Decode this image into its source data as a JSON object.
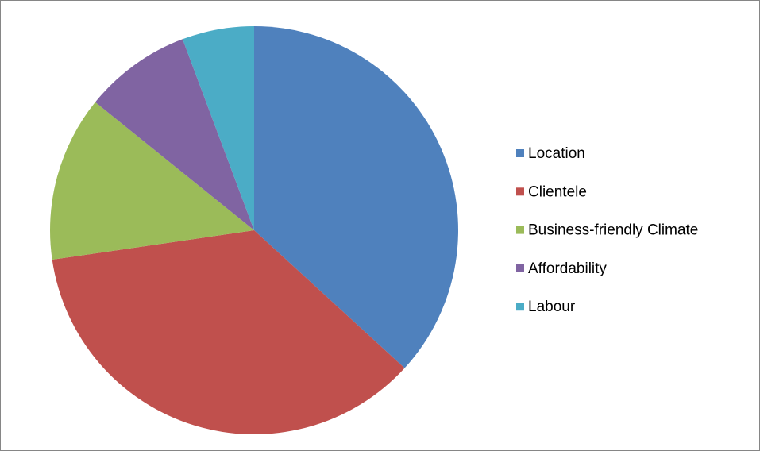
{
  "chart_data": {
    "type": "pie",
    "categories": [
      "Location",
      "Clientele",
      "Business-friendly Climate",
      "Affordability",
      "Labour"
    ],
    "values": [
      36.8,
      35.9,
      13.1,
      8.5,
      5.7
    ],
    "colors": [
      "#4f81bd",
      "#c0504d",
      "#9bbb59",
      "#8064a2",
      "#4bacc6"
    ],
    "legend": "right"
  }
}
